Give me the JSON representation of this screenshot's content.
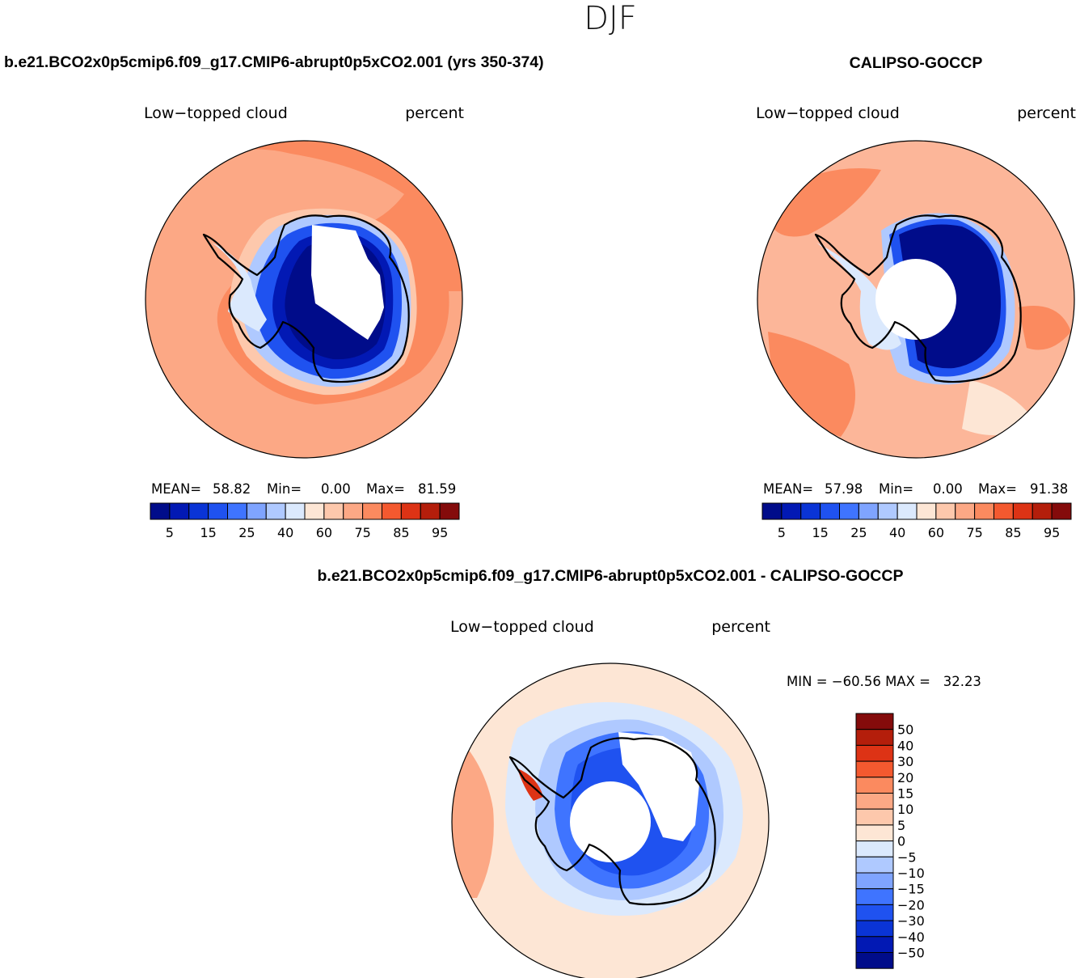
{
  "page_title": "DJF",
  "colors": {
    "ocean_base_model": "#fb8a5f",
    "ocean_base_obs": "#fcb699",
    "coast": "#000000"
  },
  "chart_data": [
    {
      "type": "heatmap",
      "projection": "south-polar-stereographic",
      "case_title": "b.e21.BCO2x0p5cmip6.f09_g17.CMIP6-abrupt0p5xCO2.001 (yrs 350-374)",
      "variable": "Low−topped cloud",
      "units": "percent",
      "stats": {
        "mean_label": "MEAN=",
        "mean": "58.82",
        "min_label": "Min=",
        "min": "0.00",
        "max_label": "Max=",
        "max": "81.59"
      },
      "colorbar": {
        "orientation": "horizontal",
        "levels": [
          0,
          5,
          10,
          15,
          20,
          25,
          30,
          40,
          50,
          60,
          70,
          75,
          80,
          85,
          90,
          95,
          100
        ],
        "tick_labels": [
          "5",
          "15",
          "25",
          "40",
          "60",
          "75",
          "85",
          "95"
        ],
        "colors": [
          "#000c8a",
          "#0219b4",
          "#0a34d6",
          "#1f52f0",
          "#3f74ff",
          "#7fa4ff",
          "#afc9ff",
          "#dbe9fd",
          "#fde6d5",
          "#fdc8ac",
          "#fca885",
          "#fb8a5f",
          "#f4592f",
          "#dd3315",
          "#b41e0b",
          "#840b0b"
        ]
      }
    },
    {
      "type": "heatmap",
      "projection": "south-polar-stereographic",
      "case_title": "CALIPSO-GOCCP",
      "variable": "Low−topped cloud",
      "units": "percent",
      "stats": {
        "mean_label": "MEAN=",
        "mean": "57.98",
        "min_label": "Min=",
        "min": "0.00",
        "max_label": "Max=",
        "max": "91.38"
      },
      "colorbar": {
        "orientation": "horizontal",
        "levels": [
          0,
          5,
          10,
          15,
          20,
          25,
          30,
          40,
          50,
          60,
          70,
          75,
          80,
          85,
          90,
          95,
          100
        ],
        "tick_labels": [
          "5",
          "15",
          "25",
          "40",
          "60",
          "75",
          "85",
          "95"
        ],
        "colors": [
          "#000c8a",
          "#0219b4",
          "#0a34d6",
          "#1f52f0",
          "#3f74ff",
          "#7fa4ff",
          "#afc9ff",
          "#dbe9fd",
          "#fde6d5",
          "#fdc8ac",
          "#fca885",
          "#fb8a5f",
          "#f4592f",
          "#dd3315",
          "#b41e0b",
          "#840b0b"
        ]
      }
    },
    {
      "type": "heatmap",
      "projection": "south-polar-stereographic",
      "case_title": "b.e21.BCO2x0p5cmip6.f09_g17.CMIP6-abrupt0p5xCO2.001 - CALIPSO-GOCCP",
      "variable": "Low−topped cloud",
      "units": "percent",
      "stats": {
        "text": "MIN = −60.56 MAX =   32.23",
        "min": -60.56,
        "max": 32.23
      },
      "colorbar": {
        "orientation": "vertical",
        "tick_labels": [
          "50",
          "40",
          "30",
          "20",
          "15",
          "10",
          "5",
          "0",
          "−5",
          "−10",
          "−15",
          "−20",
          "−30",
          "−40",
          "−50"
        ],
        "colors": [
          "#840b0b",
          "#b41e0b",
          "#dd3315",
          "#f4592f",
          "#fb8a5f",
          "#fca885",
          "#fdc8ac",
          "#fde6d5",
          "#dbe9fd",
          "#afc9ff",
          "#7fa4ff",
          "#3f74ff",
          "#1f52f0",
          "#0a34d6",
          "#0219b4",
          "#000c8a"
        ]
      }
    }
  ]
}
